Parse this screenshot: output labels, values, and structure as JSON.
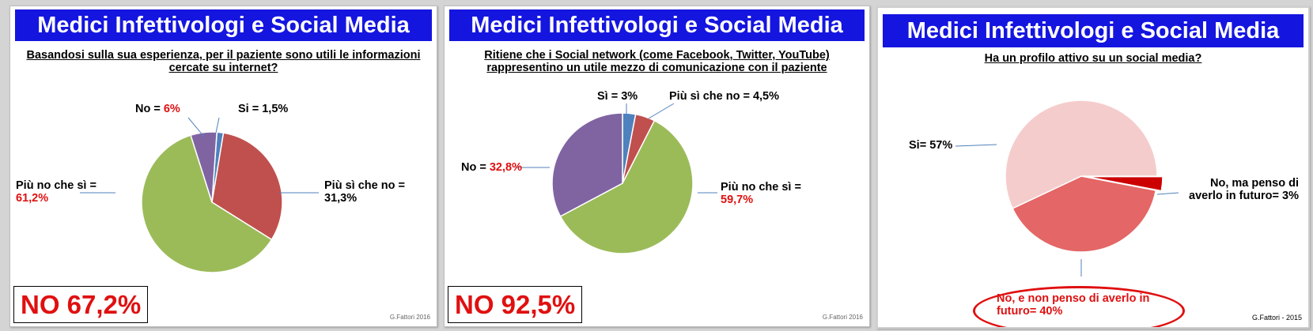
{
  "slides": [
    {
      "title": "Medici Infettivologi e Social Media",
      "question": "Basandosi sulla sua esperienza, per il paziente sono utili le informazioni cercate su internet?",
      "labels": {
        "no_text": "No = ",
        "no_value": "6%",
        "si": "Si = 1,5%",
        "piu_si": "Più sì che no = 31,3%",
        "piu_no_text": "Più no che sì =",
        "piu_no_value": "61,2%"
      },
      "summary": "NO 67,2%",
      "credit": "G.Fattori 2016"
    },
    {
      "title": "Medici Infettivologi e Social Media",
      "question": "Ritiene che i Social network (come Facebook, Twitter, YouTube) rappresentino un utile mezzo di comunicazione con il paziente",
      "labels": {
        "si": "Sì = 3%",
        "piu_si": "Più sì che no = 4,5%",
        "no_text": "No = ",
        "no_value": "32,8%",
        "piu_no_text": "Più no che sì =",
        "piu_no_value": "59,7%"
      },
      "summary": "NO 92,5%",
      "credit": "G.Fattori 2016"
    },
    {
      "title": "Medici Infettivologi e Social Media",
      "question": "Ha un profilo attivo su un social media?",
      "labels": {
        "si": "Si= 57%",
        "no_ma": "No, ma penso di averlo in futuro= 3%",
        "no_non": "No, e non penso di averlo in futuro= 40%"
      },
      "credit": "G.Fattori - 2015"
    }
  ],
  "chart_data": [
    {
      "type": "pie",
      "title": "Basandosi sulla sua esperienza, per il paziente sono utili le informazioni cercate su internet?",
      "categories": [
        "Si",
        "Più sì che no",
        "Più no che sì",
        "No"
      ],
      "values": [
        1.5,
        31.3,
        61.2,
        6
      ],
      "colors": [
        "#4f81bd",
        "#c0504d",
        "#9bbb59",
        "#8064a2"
      ]
    },
    {
      "type": "pie",
      "title": "Ritiene che i Social network (come Facebook, Twitter, YouTube) rappresentino un utile mezzo di comunicazione con il paziente",
      "categories": [
        "Sì",
        "Più sì che no",
        "Più no che sì",
        "No"
      ],
      "values": [
        3,
        4.5,
        59.7,
        32.8
      ],
      "colors": [
        "#4f81bd",
        "#c0504d",
        "#9bbb59",
        "#8064a2"
      ]
    },
    {
      "type": "pie",
      "title": "Ha un profilo attivo su un social media?",
      "categories": [
        "No, ma penso di averlo in futuro",
        "No, e non penso di averlo in futuro",
        "Si"
      ],
      "values": [
        3,
        40,
        57
      ],
      "colors": [
        "#cc0000",
        "#e46666",
        "#f5cccc"
      ]
    }
  ]
}
